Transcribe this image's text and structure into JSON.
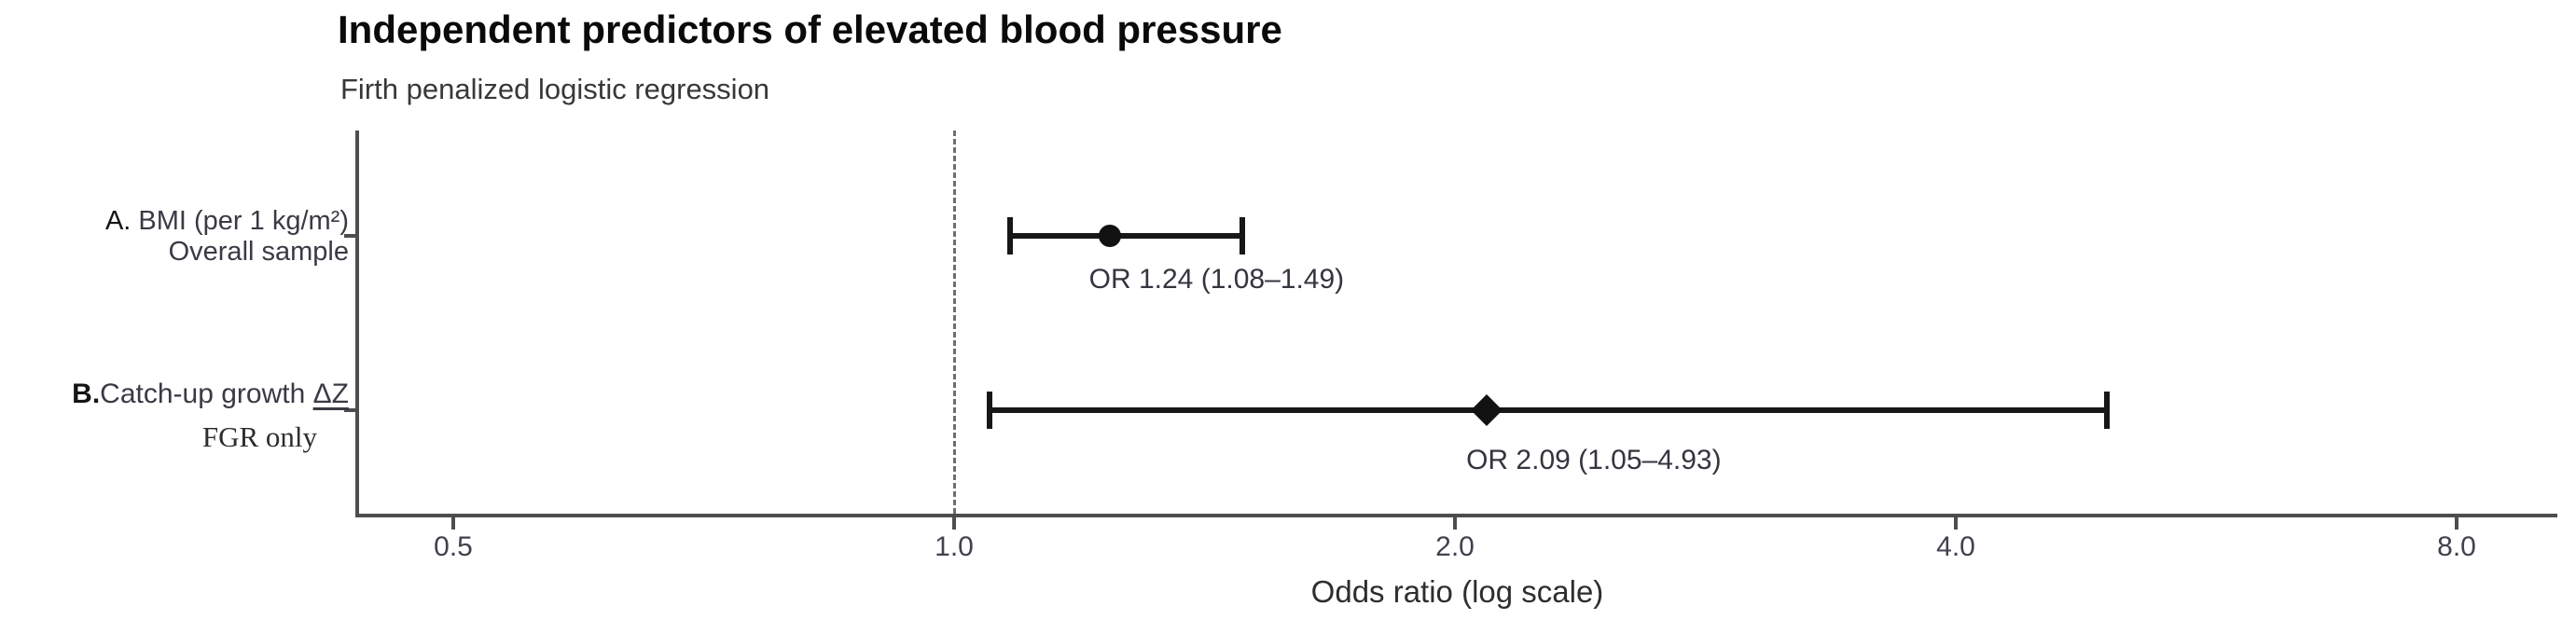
{
  "chart_data": {
    "type": "scatter",
    "variant": "forest-plot",
    "title": "Independent predictors of elevated blood pressure",
    "subtitle": "Firth penalized logistic regression",
    "xlabel": "Odds ratio (log scale)",
    "x_scale": "log2",
    "xlim": [
      0.44,
      9.2
    ],
    "x_ticks": [
      0.5,
      1.0,
      2.0,
      4.0,
      8.0
    ],
    "x_tick_labels": [
      "0.5",
      "1.0",
      "2.0",
      "4.0",
      "8.0"
    ],
    "reference_line": 1.0,
    "grid": false,
    "rows": [
      {
        "panel": "A. ",
        "predictor": "BMI (per 1 kg/m²)",
        "predictor_underlined": "",
        "subgroup": "Overall sample",
        "or": 1.24,
        "ci_low": 1.08,
        "ci_high": 1.49,
        "annotation": "OR 1.24 (1.08–1.49)",
        "marker": "circle"
      },
      {
        "panel": "B.",
        "predictor": "Catch-up growth ",
        "predictor_underlined": "ΔZ",
        "subgroup": "FGR only",
        "or": 2.09,
        "ci_low": 1.05,
        "ci_high": 4.93,
        "annotation": "OR 2.09 (1.05–4.93)",
        "marker": "diamond"
      }
    ]
  }
}
